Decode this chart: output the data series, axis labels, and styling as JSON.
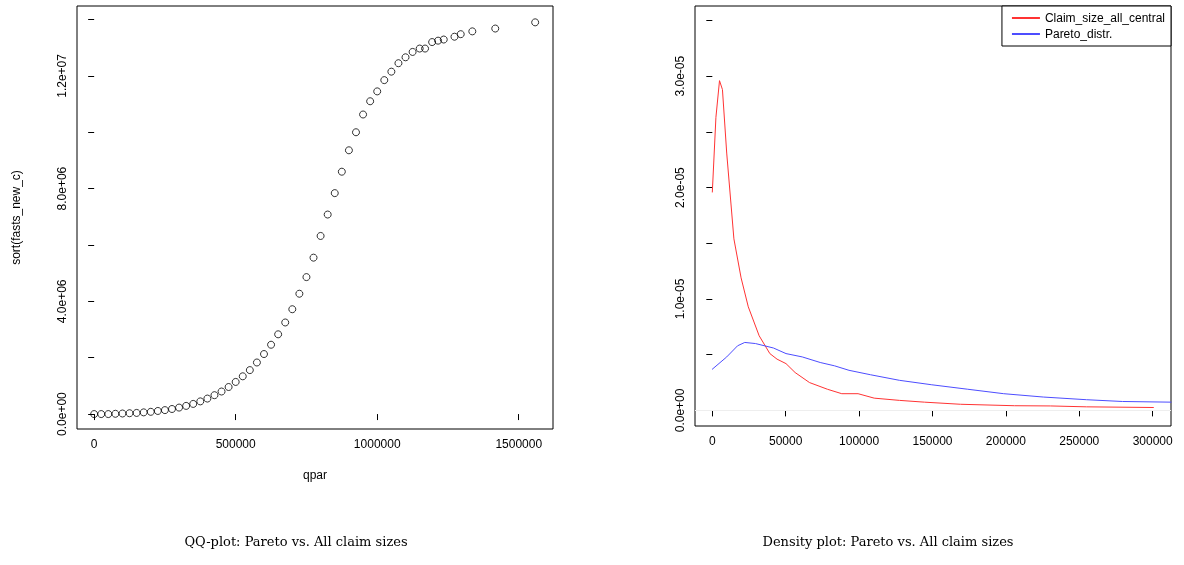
{
  "chart_data": [
    {
      "type": "scatter",
      "xlabel": "qpar",
      "ylabel": "sort(fasts_new_c)",
      "annotations": [
        "QQ-plot: Pareto vs. All claim sizes"
      ],
      "marker": "circle",
      "grid": false,
      "legend": false,
      "xlim": [
        -60600,
        1621000
      ],
      "ylim": [
        -530000,
        14480000
      ],
      "xticks": [
        0,
        500000,
        1000000,
        1500000
      ],
      "yticks": [
        {
          "value": 0,
          "label": "0.0e+00"
        },
        {
          "value": 2000000,
          "label": null
        },
        {
          "value": 4000000,
          "label": "4.0e+06"
        },
        {
          "value": 6000000,
          "label": null
        },
        {
          "value": 8000000,
          "label": "8.0e+06"
        },
        {
          "value": 10000000,
          "label": null
        },
        {
          "value": 12000000,
          "label": "1.2e+07"
        },
        {
          "value": 14000000,
          "label": null
        }
      ],
      "series": [
        {
          "color": "#000000",
          "x": [
            0,
            25000,
            50000,
            75000,
            100000,
            125000,
            150000,
            175000,
            200000,
            225000,
            250000,
            275000,
            300000,
            325000,
            350000,
            375000,
            400000,
            425000,
            450000,
            475000,
            500000,
            525000,
            550000,
            575000,
            600000,
            625000,
            650000,
            675000,
            700000,
            725000,
            750000,
            775000,
            800000,
            825000,
            850000,
            875000,
            900000,
            925000,
            950000,
            975000,
            1000000,
            1025000,
            1050000,
            1075000,
            1100000,
            1125000,
            1150000,
            1169000,
            1194000,
            1215000,
            1235000,
            1273000,
            1295000,
            1336000,
            1417000,
            1558000
          ],
          "values": [
            0,
            0,
            0,
            10000,
            20000,
            30000,
            40000,
            60000,
            80000,
            110000,
            140000,
            180000,
            230000,
            290000,
            360000,
            450000,
            550000,
            670000,
            800000,
            960000,
            1140000,
            1340000,
            1560000,
            1830000,
            2130000,
            2460000,
            2830000,
            3250000,
            3720000,
            4270000,
            4860000,
            5550000,
            6320000,
            7080000,
            7840000,
            8600000,
            9360000,
            10000000,
            10630000,
            11100000,
            11450000,
            11850000,
            12150000,
            12450000,
            12660000,
            12850000,
            12970000,
            12970000,
            13200000,
            13250000,
            13290000,
            13390000,
            13480000,
            13580000,
            13680000,
            13900000
          ]
        }
      ]
    },
    {
      "type": "line",
      "annotations": [
        "Density plot: Pareto vs. All claim sizes"
      ],
      "marker": "none",
      "grid": false,
      "legend": "top right",
      "xlim": [
        -11800,
        312500
      ],
      "ylim": [
        -1.4e-06,
        3.63e-05
      ],
      "xticks": [
        0,
        50000,
        100000,
        150000,
        200000,
        250000,
        300000
      ],
      "yticks": [
        {
          "value": 0,
          "label": "0.0e+00"
        },
        {
          "value": 5e-06,
          "label": null
        },
        {
          "value": 1e-05,
          "label": "1.0e-05"
        },
        {
          "value": 1.5e-05,
          "label": null
        },
        {
          "value": 2e-05,
          "label": "2.0e-05"
        },
        {
          "value": 2.5e-05,
          "label": null
        },
        {
          "value": 3e-05,
          "label": "3.0e-05"
        },
        {
          "value": 3.5e-05,
          "label": null
        }
      ],
      "ref_lines": [
        {
          "axis": "y",
          "value": 0,
          "color": "#eeeeee"
        }
      ],
      "series": [
        {
          "name": "Claim_size_all_central",
          "color": "#ff3333",
          "x": [
            0,
            2450,
            4900,
            6900,
            9800,
            14700,
            19600,
            24500,
            31900,
            39200,
            44100,
            50200,
            56400,
            66200,
            78400,
            88200,
            99300,
            110300,
            127500,
            144600,
            169100,
            205900,
            230400,
            254900,
            300500
          ],
          "values": [
            1.96e-05,
            2.63e-05,
            2.96e-05,
            2.88e-05,
            2.31e-05,
            1.54e-05,
            1.19e-05,
            9.3e-06,
            6.7e-06,
            5.1e-06,
            4.6e-06,
            4.2e-06,
            3.4e-06,
            2.5e-06,
            1.9e-06,
            1.5e-06,
            1.5e-06,
            1.1e-06,
            9e-07,
            7.4e-07,
            5.5e-07,
            4.2e-07,
            4e-07,
            3.2e-07,
            2.6e-07
          ]
        },
        {
          "name": "Pareto_distr.",
          "color": "#4d4dff",
          "x": [
            0,
            9800,
            17200,
            22100,
            29400,
            41700,
            50200,
            61300,
            73500,
            83300,
            93100,
            107800,
            127500,
            149500,
            174000,
            198500,
            225500,
            254900,
            279400,
            312500
          ],
          "values": [
            3.7e-06,
            4.8e-06,
            5.8e-06,
            6.1e-06,
            6e-06,
            5.6e-06,
            5.1e-06,
            4.8e-06,
            4.3e-06,
            4e-06,
            3.6e-06,
            3.2e-06,
            2.7e-06,
            2.3e-06,
            1.9e-06,
            1.5e-06,
            1.2e-06,
            9.6e-07,
            8e-07,
            7.4e-07
          ]
        }
      ]
    }
  ]
}
